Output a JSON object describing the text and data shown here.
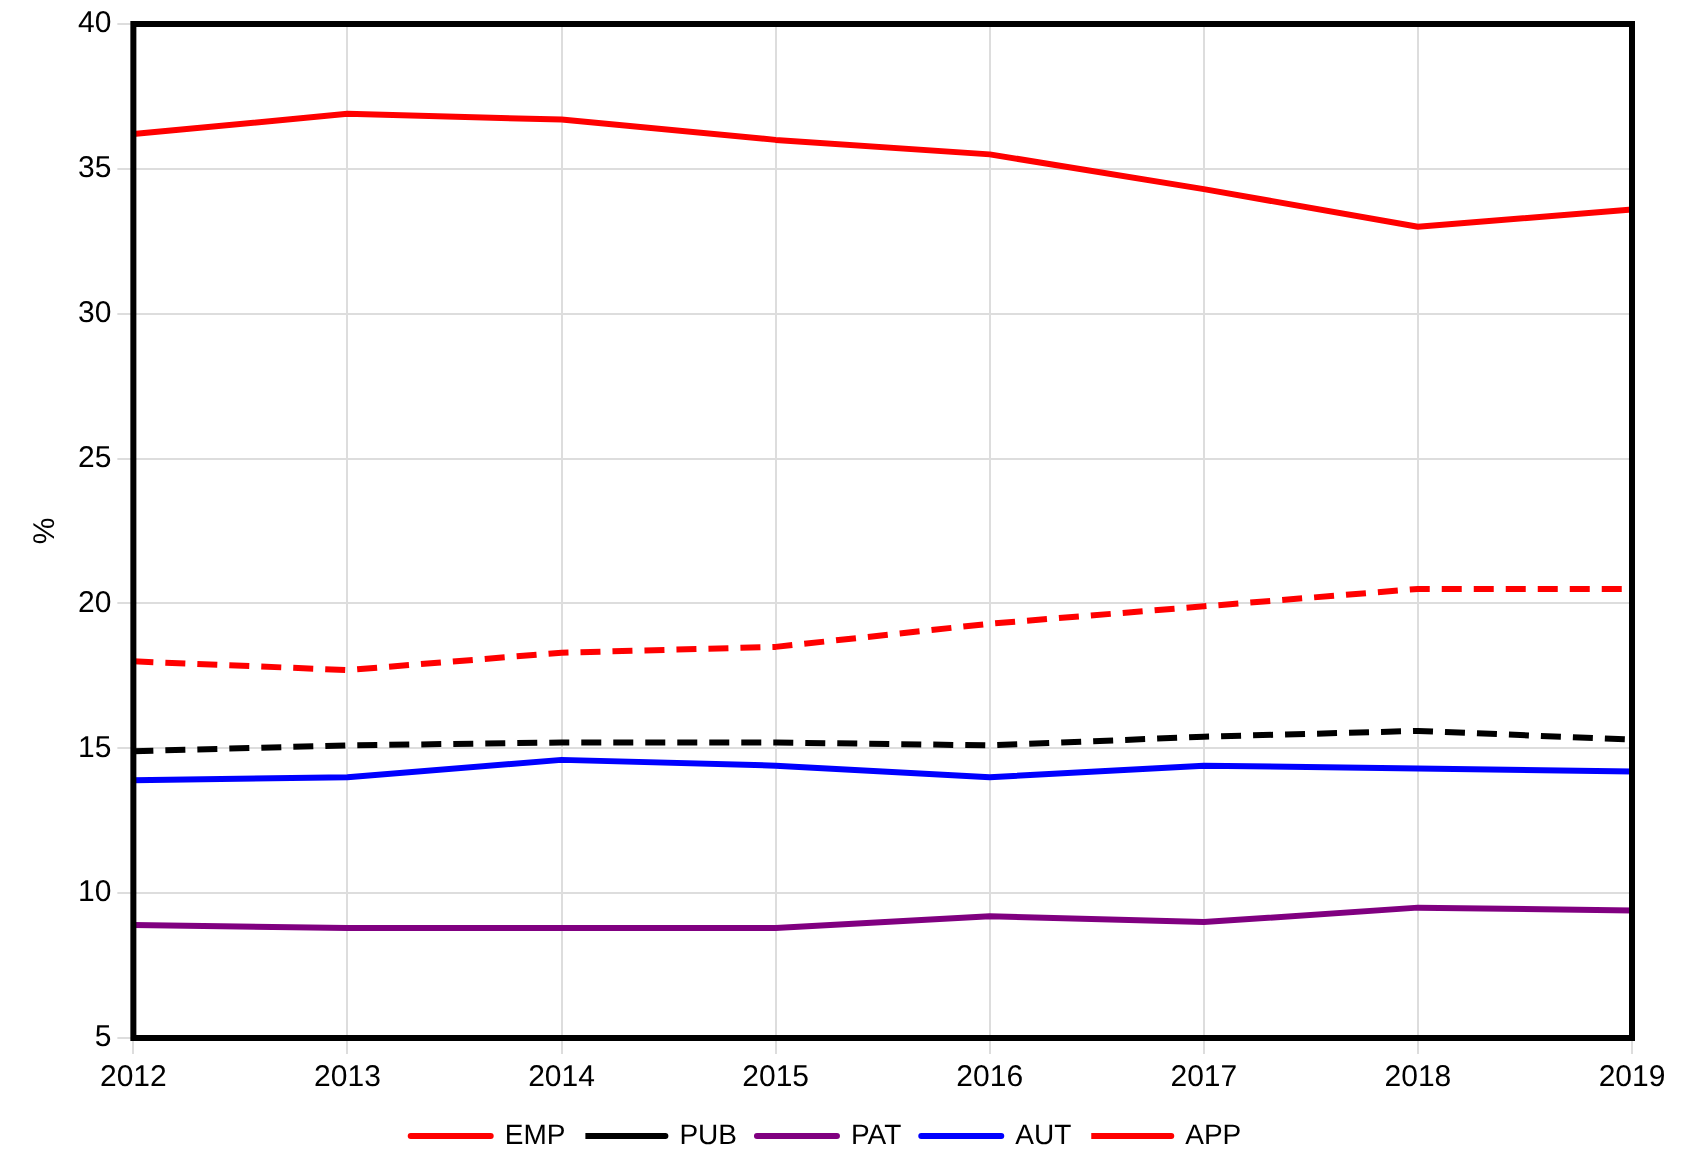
{
  "chart_data": {
    "type": "line",
    "ylabel": "%",
    "x": [
      2012,
      2013,
      2014,
      2015,
      2016,
      2017,
      2018,
      2019
    ],
    "xlim": [
      2012,
      2019
    ],
    "xticks": [
      2012,
      2013,
      2014,
      2015,
      2016,
      2017,
      2018,
      2019
    ],
    "ylim": [
      5,
      40
    ],
    "yticks": [
      5,
      10,
      15,
      20,
      25,
      30,
      35,
      40
    ],
    "grid": true,
    "legend": "bottom",
    "marker": "none",
    "series": [
      {
        "name": "EMP",
        "color": "#ff0000",
        "line_style": "solid",
        "values": [
          36.2,
          36.9,
          36.7,
          36.0,
          35.5,
          34.3,
          33.0,
          33.6
        ]
      },
      {
        "name": "PUB",
        "color": "#000000",
        "line_style": "dashed",
        "values": [
          14.9,
          15.1,
          15.2,
          15.2,
          15.1,
          15.4,
          15.6,
          15.3
        ]
      },
      {
        "name": "PAT",
        "color": "#800080",
        "line_style": "solid",
        "values": [
          8.9,
          8.8,
          8.8,
          8.8,
          9.2,
          9.0,
          9.5,
          9.4
        ]
      },
      {
        "name": "AUT",
        "color": "#0000ff",
        "line_style": "solid",
        "values": [
          13.9,
          14.0,
          14.6,
          14.4,
          14.0,
          14.4,
          14.3,
          14.2
        ]
      },
      {
        "name": "APP",
        "color": "#ff0000",
        "line_style": "dashed",
        "values": [
          18.0,
          17.7,
          18.3,
          18.5,
          19.3,
          19.9,
          20.5,
          20.5
        ]
      }
    ]
  }
}
